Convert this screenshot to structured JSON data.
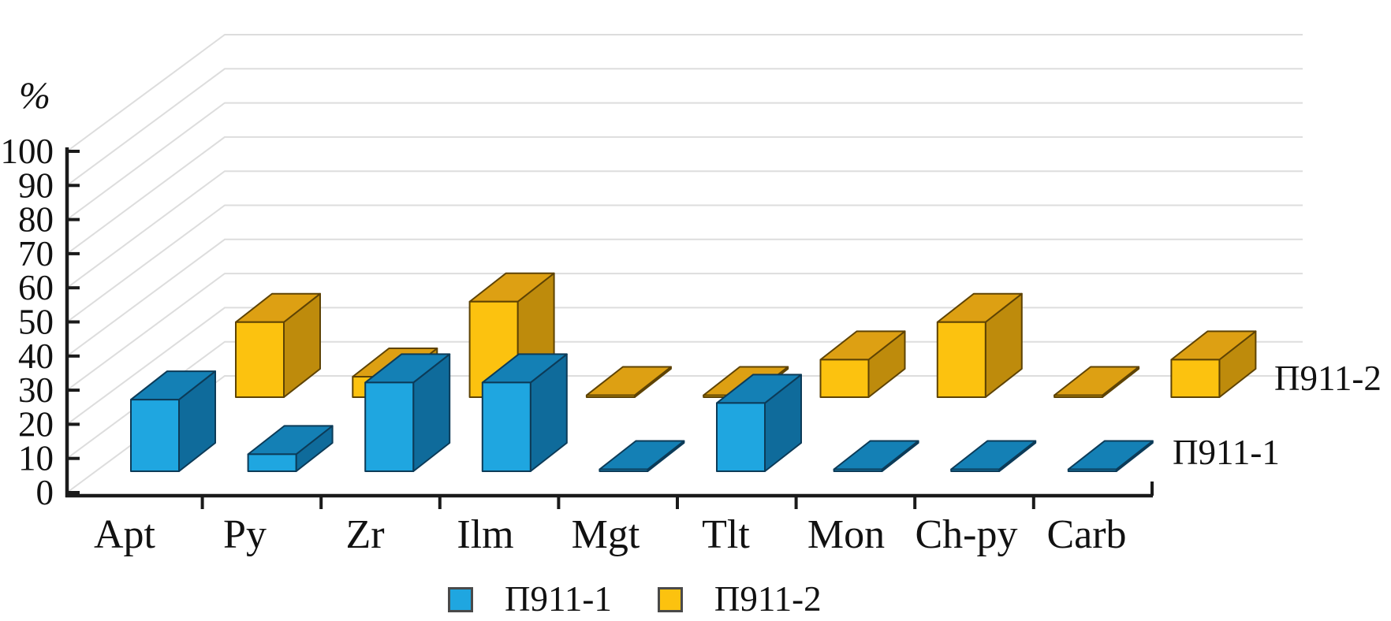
{
  "chart_data": {
    "type": "bar",
    "style": "3d-oblique",
    "title": "",
    "ylabel": "%",
    "ylim": [
      0,
      100
    ],
    "ytick_step": 10,
    "yticks": [
      0,
      10,
      20,
      30,
      40,
      50,
      60,
      70,
      80,
      90,
      100
    ],
    "categories": [
      "Apt",
      "Py",
      "Zr",
      "Ilm",
      "Mgt",
      "Tlt",
      "Mon",
      "Ch-py",
      "Carb"
    ],
    "series": [
      {
        "name": "П911-1",
        "depth": "front",
        "values": [
          21,
          5,
          26,
          26,
          0.5,
          20,
          0.5,
          0.5,
          0.5
        ],
        "colors": {
          "front": "#1FA6E0",
          "top": "#1480B5",
          "side": "#0F6B9B",
          "outline": "#0C3B58"
        }
      },
      {
        "name": "П911-2",
        "depth": "back",
        "values": [
          22,
          6,
          28,
          0.5,
          0.5,
          11,
          22,
          0.5,
          11
        ],
        "colors": {
          "front": "#FCC20F",
          "top": "#DDA013",
          "side": "#BE8B0C",
          "outline": "#5E4304"
        }
      }
    ],
    "row_labels": {
      "back": "П911-2",
      "front": "П911-1"
    },
    "legend": {
      "position": "bottom",
      "entries": [
        "П911-1",
        "П911-2"
      ]
    },
    "grid": true,
    "grid_color": "#DDDDDD",
    "axis_color": "#1A1A1A",
    "text_color": "#111111",
    "background": "#FFFFFF"
  }
}
